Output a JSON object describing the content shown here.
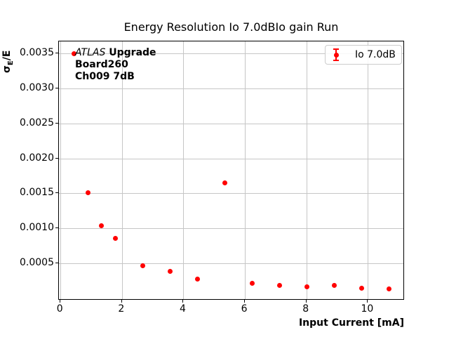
{
  "figure": {
    "title": "Energy Resolution Io 7.0dBIo gain Run",
    "xlabel": "Input Current [mA]",
    "ylabel": {
      "sigma": "σ",
      "sigma_sub": "E",
      "rest": "/E"
    },
    "annotation": {
      "line1_italic": "ATLAS",
      "line1_bold": " Upgrade",
      "line2": "Board260",
      "line3": "Ch009 7dB"
    },
    "legend": {
      "label": "Io 7.0dB",
      "marker": "errorbar-dot-icon"
    },
    "colors": {
      "series": "#ff0000",
      "grid": "#c6c6c6",
      "spine": "#000000",
      "background": "#ffffff"
    }
  },
  "chart_data": {
    "type": "scatter",
    "title": "Energy Resolution Io 7.0dBIo gain Run",
    "xlabel": "Input Current [mA]",
    "ylabel": "σE/E",
    "grid": true,
    "legend_position": "upper right",
    "xlim": [
      -0.05,
      11.2
    ],
    "ylim": [
      -3e-05,
      0.00367
    ],
    "x_ticks": [
      0,
      2,
      4,
      6,
      8,
      10
    ],
    "x_tick_labels": [
      "0",
      "2",
      "4",
      "6",
      "8",
      "10"
    ],
    "y_ticks": [
      0.0005,
      0.001,
      0.0015,
      0.002,
      0.0025,
      0.003,
      0.0035
    ],
    "y_tick_labels": [
      "0.0005",
      "0.0010",
      "0.0015",
      "0.0020",
      "0.0025",
      "0.0030",
      "0.0035"
    ],
    "series": [
      {
        "name": "Io 7.0dB",
        "marker": "circle",
        "errorbars": true,
        "color": "#ff0000",
        "x": [
          0.45,
          0.89,
          1.34,
          1.78,
          2.67,
          3.56,
          4.45,
          5.34,
          6.23,
          7.12,
          8.01,
          8.9,
          9.79,
          10.68
        ],
        "y": [
          0.00349,
          0.00151,
          0.00104,
          0.00086,
          0.00047,
          0.00039,
          0.00028,
          0.00165,
          0.00022,
          0.00019,
          0.00017,
          0.00019,
          0.00015,
          0.00014
        ]
      }
    ]
  }
}
